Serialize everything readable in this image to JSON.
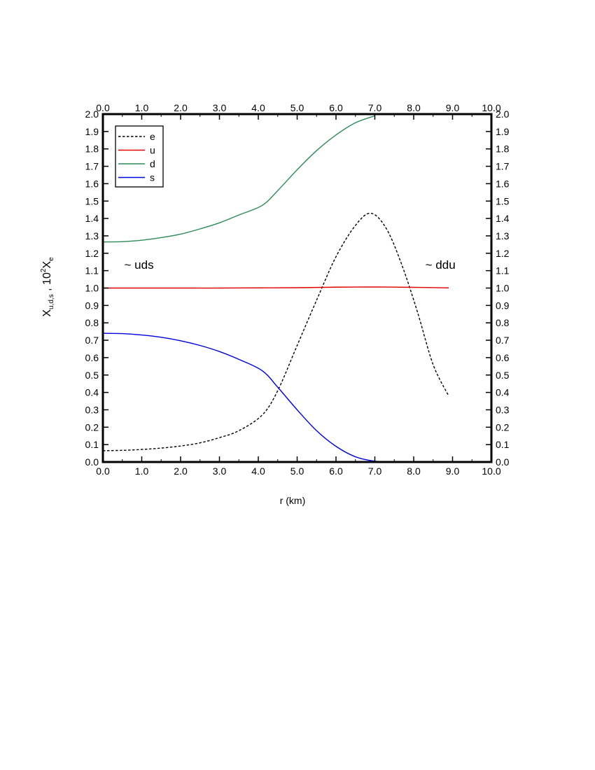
{
  "chart_data": {
    "type": "line",
    "xlabel": "r (km)",
    "ylabel": {
      "main1": "X",
      "sub1": "u,d,s",
      "sep": " , ",
      "main2": "10",
      "sup2": "2",
      "main3": "X",
      "sub3": "e"
    },
    "xlim": [
      0,
      10
    ],
    "ylim": [
      0,
      2
    ],
    "x_ticks": [
      "0.0",
      "1.0",
      "2.0",
      "3.0",
      "4.0",
      "5.0",
      "6.0",
      "7.0",
      "8.0",
      "9.0",
      "10.0"
    ],
    "y_ticks": [
      "0.0",
      "0.1",
      "0.2",
      "0.3",
      "0.4",
      "0.5",
      "0.6",
      "0.7",
      "0.8",
      "0.9",
      "1.0",
      "1.1",
      "1.2",
      "1.3",
      "1.4",
      "1.5",
      "1.6",
      "1.7",
      "1.8",
      "1.9",
      "2.0"
    ],
    "grid": false,
    "legend_position": "top-left",
    "annotations": [
      {
        "text": "~  uds",
        "x": 0.55,
        "y": 1.11
      },
      {
        "text": "~  ddu",
        "x": 8.3,
        "y": 1.11
      }
    ],
    "series": [
      {
        "name": "e",
        "color": "#000000",
        "dash": "dashed",
        "x": [
          0,
          0.5,
          1.0,
          1.5,
          2.0,
          2.5,
          3.0,
          3.5,
          4.1,
          4.5,
          5.0,
          5.5,
          6.0,
          6.5,
          6.9,
          7.3,
          7.7,
          8.1,
          8.5,
          8.9
        ],
        "y": [
          0.065,
          0.067,
          0.072,
          0.08,
          0.092,
          0.11,
          0.14,
          0.18,
          0.27,
          0.41,
          0.67,
          0.93,
          1.18,
          1.36,
          1.43,
          1.34,
          1.13,
          0.86,
          0.56,
          0.38
        ]
      },
      {
        "name": "u",
        "color": "#e00000",
        "dash": "solid",
        "x": [
          0,
          1,
          2,
          3,
          4,
          5,
          6,
          7,
          8,
          8.9
        ],
        "y": [
          1.0,
          1.0,
          1.0,
          1.0,
          1.001,
          1.002,
          1.005,
          1.006,
          1.004,
          1.001
        ]
      },
      {
        "name": "d",
        "color": "#2e8b57",
        "dash": "solid",
        "x": [
          0,
          0.5,
          1.0,
          1.5,
          2.0,
          2.5,
          3.0,
          3.5,
          4.1,
          4.5,
          5.0,
          5.5,
          6.0,
          6.5,
          7.0
        ],
        "y": [
          1.265,
          1.267,
          1.275,
          1.29,
          1.31,
          1.34,
          1.375,
          1.42,
          1.475,
          1.56,
          1.68,
          1.79,
          1.88,
          1.95,
          1.99
        ]
      },
      {
        "name": "s",
        "color": "#0000e0",
        "dash": "solid",
        "x": [
          0,
          0.5,
          1.0,
          1.5,
          2.0,
          2.5,
          3.0,
          3.5,
          4.1,
          4.5,
          5.0,
          5.5,
          6.0,
          6.5,
          7.0,
          7.5,
          8.0,
          8.5,
          8.9
        ],
        "y": [
          0.74,
          0.738,
          0.73,
          0.717,
          0.697,
          0.67,
          0.635,
          0.59,
          0.525,
          0.43,
          0.3,
          0.18,
          0.09,
          0.03,
          0.005,
          0.003,
          0.003,
          0.003,
          0.003
        ]
      }
    ]
  }
}
